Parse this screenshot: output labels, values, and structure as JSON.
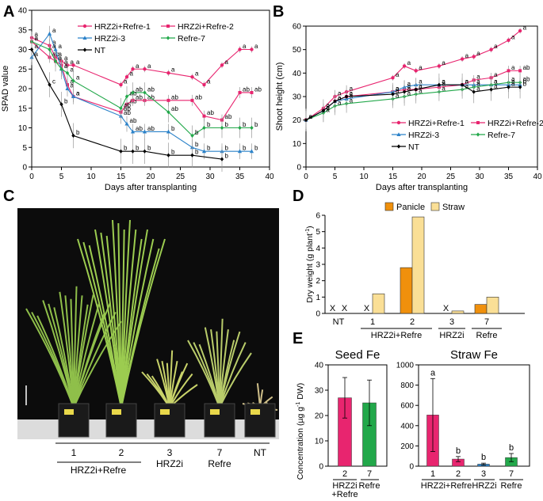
{
  "panels": {
    "a": "A",
    "b": "B",
    "c": "C",
    "d": "D",
    "e": "E"
  },
  "colors": {
    "refre1": "#e8256f",
    "refre2": "#e8256f",
    "hrz3": "#2b82c9",
    "refre7": "#22a84a",
    "nt": "#000000",
    "panicle": "#f0900c",
    "straw": "#fadf96",
    "ebar1": "#e8256f",
    "ebar2": "#22a84a",
    "estrawNT": "#2b82c9"
  },
  "chart_data": [
    {
      "id": "A",
      "type": "line",
      "title": "",
      "xlabel": "Days after transplanting",
      "ylabel": "SPAD value",
      "xlim": [
        0,
        40
      ],
      "ylim": [
        0,
        40
      ],
      "xticks": [
        "0",
        "5",
        "10",
        "15",
        "20",
        "25",
        "30",
        "35",
        "40"
      ],
      "yticks": [
        "0",
        "5",
        "10",
        "15",
        "20",
        "25",
        "30",
        "35",
        "40"
      ],
      "legend": [
        "HRZ2i+Refre-1",
        "HRZ2i+Refre-2",
        "HRZ2i-3",
        "Refre-7",
        "NT"
      ],
      "series": [
        {
          "name": "HRZ2i+Refre-1",
          "x": [
            0,
            3,
            4,
            5,
            6,
            7,
            15,
            16,
            17,
            19,
            23,
            27,
            29,
            32,
            35,
            37
          ],
          "y": [
            33,
            31,
            28,
            27,
            26,
            26,
            21,
            23,
            25,
            25,
            24,
            23,
            21,
            26,
            30,
            30
          ],
          "labels": [
            "a",
            "a",
            "a",
            "a",
            "a",
            "a",
            "a",
            "a",
            "a",
            "a",
            "a",
            "a",
            "a",
            "a",
            "a",
            "a"
          ]
        },
        {
          "name": "HRZ2i+Refre-2",
          "x": [
            0,
            3,
            4,
            5,
            6,
            7,
            15,
            16,
            17,
            19,
            23,
            27,
            29,
            32,
            35,
            37
          ],
          "y": [
            32,
            28,
            27,
            26,
            21,
            18,
            14,
            16,
            17,
            17,
            17,
            17,
            13,
            12,
            19,
            19
          ],
          "labels": [
            "a",
            "ab",
            "a",
            "a",
            "a",
            "a",
            "ab",
            "ab",
            "ab",
            "ab",
            "ab",
            "ab",
            "ab",
            "ab",
            "ab",
            "ab"
          ]
        },
        {
          "name": "HRZ2i-3",
          "x": [
            0,
            3,
            4,
            5,
            6,
            7,
            15,
            16,
            17,
            19,
            23,
            27,
            29,
            32,
            35,
            37
          ],
          "y": [
            28,
            34,
            30,
            25,
            20,
            18,
            13,
            11,
            9,
            9,
            9,
            5,
            4,
            4,
            4,
            4
          ],
          "labels": [
            "a",
            "a",
            "a",
            "a",
            "a",
            "a",
            "ab",
            "ab",
            "ab",
            "ab",
            "b",
            "b",
            "b",
            "b",
            "b",
            "b"
          ]
        },
        {
          "name": "Refre-7",
          "x": [
            0,
            3,
            4,
            5,
            6,
            7,
            15,
            16,
            17,
            19,
            23,
            27,
            29,
            32,
            35,
            37
          ],
          "y": [
            32,
            30,
            27,
            25,
            24,
            22,
            15,
            18,
            19,
            19,
            14,
            8,
            10,
            10,
            10,
            10
          ],
          "labels": [
            "a",
            "a",
            "a",
            "a",
            "a",
            "a",
            "ab",
            "ab",
            "ab",
            "ab",
            "ab",
            "b",
            "b",
            "b",
            "b",
            "b"
          ]
        },
        {
          "name": "NT",
          "x": [
            0,
            3,
            5,
            7,
            15,
            17,
            19,
            23,
            27,
            32
          ],
          "y": [
            30,
            21,
            16,
            8,
            4,
            4,
            4,
            3,
            3,
            2
          ],
          "labels": [
            "a",
            "c",
            "b",
            "b",
            "b",
            "b",
            "b",
            "b",
            "b",
            "b"
          ]
        }
      ]
    },
    {
      "id": "B",
      "type": "line",
      "xlabel": "Days after transplanting",
      "ylabel": "Shoot height (cm)",
      "xlim": [
        0,
        40
      ],
      "ylim": [
        0,
        60
      ],
      "xticks": [
        "0",
        "5",
        "10",
        "15",
        "20",
        "25",
        "30",
        "35",
        "40"
      ],
      "yticks": [
        "0",
        "10",
        "20",
        "30",
        "40",
        "50",
        "60"
      ],
      "legend": [
        "HRZ2i+Refre-1",
        "HRZ2i+Refre-2",
        "HRZ2i-3",
        "Refre-7",
        "NT"
      ],
      "series": [
        {
          "name": "HRZ2i+Refre-1",
          "x": [
            0,
            3,
            5,
            7,
            15,
            17,
            19,
            23,
            27,
            29,
            32,
            35,
            37
          ],
          "y": [
            20,
            25,
            30,
            32,
            38,
            43,
            41,
            43,
            46,
            47,
            50,
            54,
            58
          ],
          "labels": [
            "a",
            "a",
            "a",
            "a",
            "a",
            "a",
            "a",
            "a",
            "a",
            "a",
            "a",
            "a",
            "a"
          ]
        },
        {
          "name": "HRZ2i+Refre-2",
          "x": [
            0,
            3,
            5,
            7,
            15,
            17,
            19,
            23,
            27,
            29,
            32,
            35,
            37
          ],
          "y": [
            20,
            24,
            28,
            30,
            32,
            33,
            33,
            34,
            35,
            37,
            38,
            41,
            41
          ],
          "labels": [
            "a",
            "a",
            "a",
            "a",
            "a",
            "a",
            "a",
            "a",
            "a",
            "a",
            "a",
            "a",
            "ab"
          ]
        },
        {
          "name": "HRZ2i-3",
          "x": [
            0,
            3,
            5,
            7,
            15,
            17,
            19,
            23,
            27,
            29,
            32,
            35,
            37
          ],
          "y": [
            20,
            24,
            28,
            29,
            32,
            34,
            35,
            35,
            35,
            35,
            35,
            35,
            35
          ],
          "labels": [
            "a",
            "a",
            "a",
            "a",
            "a",
            "a",
            "a",
            "a",
            "a",
            "a",
            "a",
            "a",
            "b"
          ]
        },
        {
          "name": "Refre-7",
          "x": [
            0,
            3,
            5,
            7,
            15,
            17,
            19,
            23,
            27,
            29,
            32,
            35,
            37
          ],
          "y": [
            20,
            23,
            26,
            27,
            29,
            30,
            31,
            32,
            33,
            34,
            35,
            36,
            36
          ],
          "labels": [
            "a",
            "a",
            "a",
            "a",
            "a",
            "a",
            "a",
            "a",
            "a",
            "a",
            "a",
            "a",
            "ab"
          ]
        },
        {
          "name": "NT",
          "x": [
            0,
            3,
            5,
            7,
            15,
            17,
            19,
            23,
            27,
            29,
            32,
            35,
            37
          ],
          "y": [
            20,
            24,
            28,
            30,
            31,
            32,
            33,
            35,
            35,
            32,
            33,
            34,
            34
          ],
          "labels": [
            "a",
            "a",
            "a",
            "a",
            "a",
            "a",
            "a",
            "a",
            "a",
            "a",
            "a",
            "a",
            "b"
          ]
        }
      ]
    },
    {
      "id": "D",
      "type": "bar",
      "ylabel": "Dry weight (g plant",
      "ylabel_sup": "-1",
      "ylabel_end": ")",
      "ylim": [
        0,
        6
      ],
      "yticks": [
        "0",
        "1",
        "2",
        "3",
        "4",
        "5",
        "6"
      ],
      "legend": [
        "Panicle",
        "Straw"
      ],
      "groups": [
        {
          "label": "NT",
          "panicle": null,
          "straw": null
        },
        {
          "label": "1",
          "panicle": null,
          "straw": 1.2
        },
        {
          "label": "2",
          "panicle": 2.8,
          "straw": 5.9
        },
        {
          "label": "3",
          "panicle": null,
          "straw": 0.15
        },
        {
          "label": "7",
          "panicle": 0.55,
          "straw": 1.0
        }
      ],
      "missing_marker": "X",
      "group_labels": [
        "HRZ2i+Refre",
        "HRZ2i",
        "Refre"
      ]
    },
    {
      "id": "E1",
      "type": "bar",
      "title": "Seed Fe",
      "ylabel": "Concentration (µg g",
      "ylabel_sup": "-1",
      "ylabel_end": " DW)",
      "ylim": [
        0,
        40
      ],
      "yticks": [
        "0",
        "10",
        "20",
        "30",
        "40"
      ],
      "categories": [
        "2",
        "7"
      ],
      "values": [
        27,
        25
      ],
      "err": [
        8,
        9
      ],
      "group_labels": [
        "HRZ2i\n+Refre",
        "Refre"
      ]
    },
    {
      "id": "E2",
      "type": "bar",
      "title": "Straw Fe",
      "ylim": [
        0,
        1000
      ],
      "yticks": [
        "0",
        "200",
        "400",
        "600",
        "800",
        "1000"
      ],
      "categories": [
        "1",
        "2",
        "3",
        "7"
      ],
      "values": [
        505,
        70,
        20,
        85
      ],
      "err": [
        360,
        25,
        10,
        40
      ],
      "sig": [
        "a",
        "b",
        "b",
        "b"
      ],
      "group_labels": [
        "HRZ2i+Refre",
        "HRZ2i",
        "Refre"
      ]
    }
  ],
  "photo": {
    "plant_numbers": [
      "1",
      "2",
      "3",
      "7",
      "NT"
    ],
    "group_labels": [
      "HRZ2i+Refre",
      "HRZ2i",
      "Refre"
    ]
  }
}
